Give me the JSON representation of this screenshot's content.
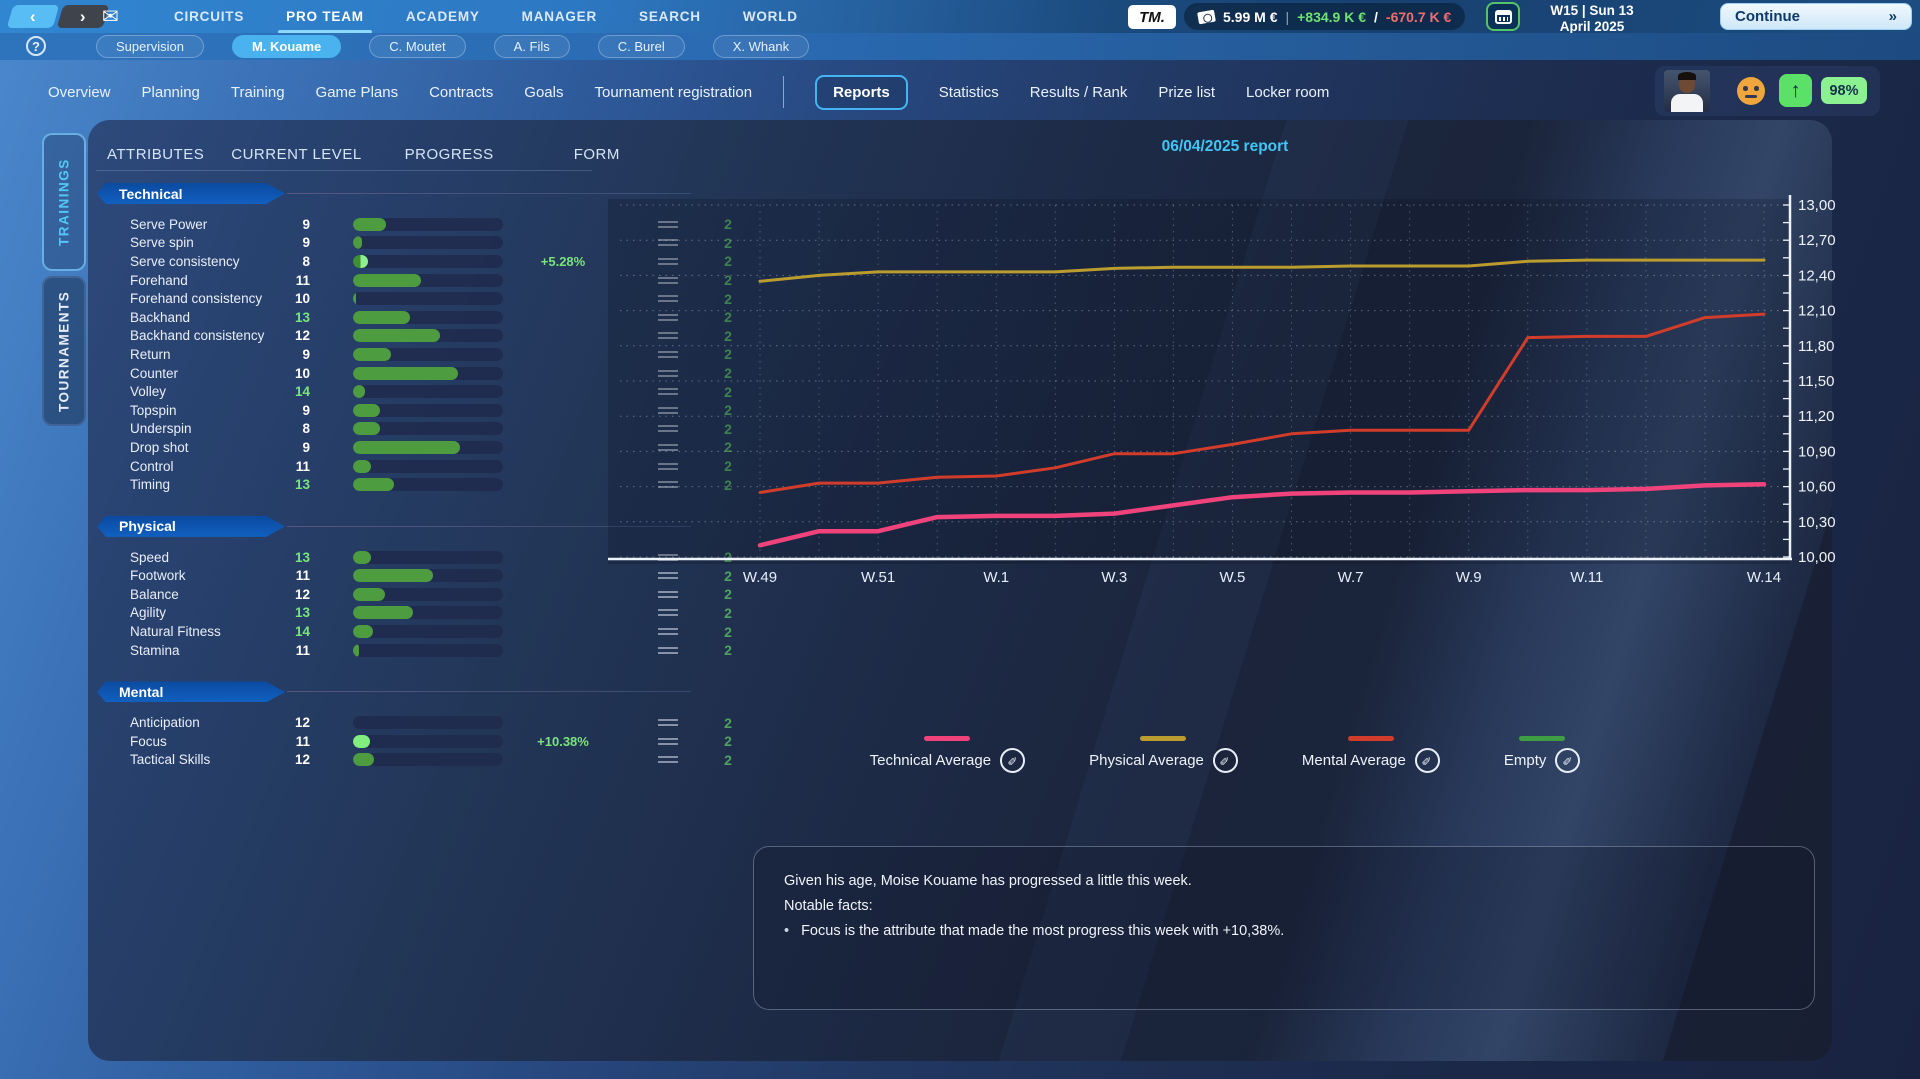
{
  "topbar": {
    "back_icon": "‹",
    "forward_icon": "›",
    "mail_icon": "✉",
    "nav": [
      {
        "label": "CIRCUITS",
        "active": false
      },
      {
        "label": "PRO TEAM",
        "active": true
      },
      {
        "label": "ACADEMY",
        "active": false
      },
      {
        "label": "MANAGER",
        "active": false
      },
      {
        "label": "SEARCH",
        "active": false
      },
      {
        "label": "WORLD",
        "active": false
      }
    ],
    "logo": "TM.",
    "money": {
      "balance": "5.99 M €",
      "separator": "|",
      "income": "+834.9 K €",
      "slash": "/",
      "expense": "-670.7 K €"
    },
    "date": {
      "line1": "W15 | Sun 13",
      "line2": "April 2025"
    },
    "continue_label": "Continue",
    "continue_icon": "»"
  },
  "help_icon": "?",
  "player_tabs": [
    {
      "label": "Supervision",
      "active": false
    },
    {
      "label": "M. Kouame",
      "active": true
    },
    {
      "label": "C. Moutet",
      "active": false
    },
    {
      "label": "A. Fils",
      "active": false
    },
    {
      "label": "C. Burel",
      "active": false
    },
    {
      "label": "X. Whank",
      "active": false
    }
  ],
  "page_tabs": [
    {
      "label": "Overview",
      "active": false
    },
    {
      "label": "Planning",
      "active": false
    },
    {
      "label": "Training",
      "active": false
    },
    {
      "label": "Game Plans",
      "active": false
    },
    {
      "label": "Contracts",
      "active": false
    },
    {
      "label": "Goals",
      "active": false
    },
    {
      "label": "Tournament registration",
      "active": false,
      "divider_after": true
    },
    {
      "label": "Reports",
      "active": true
    },
    {
      "label": "Statistics",
      "active": false
    },
    {
      "label": "Results / Rank",
      "active": false
    },
    {
      "label": "Prize list",
      "active": false
    },
    {
      "label": "Locker room",
      "active": false
    }
  ],
  "status": {
    "arrow_icon": "↑",
    "fitness": "98%"
  },
  "side_tabs": [
    {
      "label": "TRAININGS",
      "active": true
    },
    {
      "label": "TOURNAMENTS",
      "active": false
    }
  ],
  "subtabs": [
    {
      "label": "ATTRIBUTES"
    },
    {
      "label": "CURRENT LEVEL"
    },
    {
      "label": "PROGRESS"
    },
    {
      "label": "FORM"
    }
  ],
  "report_title": "06/04/2025 report",
  "attributes": {
    "sections": [
      {
        "title": "Technical",
        "rows": [
          {
            "label": "Serve Power",
            "value": "9",
            "hl": false,
            "bar": 0.22,
            "style": "normal",
            "trend": "",
            "count": "2"
          },
          {
            "label": "Serve spin",
            "value": "9",
            "hl": false,
            "bar": 0.06,
            "style": "normal",
            "trend": "",
            "count": "2"
          },
          {
            "label": "Serve consistency",
            "value": "8",
            "hl": false,
            "bar": 0.1,
            "style": "half",
            "trend": "+5.28%",
            "count": "2"
          },
          {
            "label": "Forehand",
            "value": "11",
            "hl": false,
            "bar": 0.45,
            "style": "normal",
            "trend": "",
            "count": "2"
          },
          {
            "label": "Forehand consistency",
            "value": "10",
            "hl": false,
            "bar": 0.02,
            "style": "normal",
            "trend": "",
            "count": "2"
          },
          {
            "label": "Backhand",
            "value": "13",
            "hl": true,
            "bar": 0.38,
            "style": "normal",
            "trend": "",
            "count": "2"
          },
          {
            "label": "Backhand consistency",
            "value": "12",
            "hl": false,
            "bar": 0.58,
            "style": "normal",
            "trend": "",
            "count": "2"
          },
          {
            "label": "Return",
            "value": "9",
            "hl": false,
            "bar": 0.25,
            "style": "normal",
            "trend": "",
            "count": "2"
          },
          {
            "label": "Counter",
            "value": "10",
            "hl": false,
            "bar": 0.7,
            "style": "normal",
            "trend": "",
            "count": "2"
          },
          {
            "label": "Volley",
            "value": "14",
            "hl": true,
            "bar": 0.08,
            "style": "normal",
            "trend": "",
            "count": "2"
          },
          {
            "label": "Topspin",
            "value": "9",
            "hl": false,
            "bar": 0.18,
            "style": "normal",
            "trend": "",
            "count": "2"
          },
          {
            "label": "Underspin",
            "value": "8",
            "hl": false,
            "bar": 0.18,
            "style": "normal",
            "trend": "",
            "count": "2"
          },
          {
            "label": "Drop shot",
            "value": "9",
            "hl": false,
            "bar": 0.71,
            "style": "normal",
            "trend": "",
            "count": "2"
          },
          {
            "label": "Control",
            "value": "11",
            "hl": false,
            "bar": 0.12,
            "style": "normal",
            "trend": "",
            "count": "2"
          },
          {
            "label": "Timing",
            "value": "13",
            "hl": true,
            "bar": 0.27,
            "style": "normal",
            "trend": "",
            "count": "2"
          }
        ]
      },
      {
        "title": "Physical",
        "rows": [
          {
            "label": "Speed",
            "value": "13",
            "hl": true,
            "bar": 0.12,
            "style": "normal",
            "trend": "",
            "count": "2"
          },
          {
            "label": "Footwork",
            "value": "11",
            "hl": false,
            "bar": 0.53,
            "style": "normal",
            "trend": "",
            "count": "2"
          },
          {
            "label": "Balance",
            "value": "12",
            "hl": false,
            "bar": 0.21,
            "style": "normal",
            "trend": "",
            "count": "2"
          },
          {
            "label": "Agility",
            "value": "13",
            "hl": true,
            "bar": 0.4,
            "style": "normal",
            "trend": "",
            "count": "2"
          },
          {
            "label": "Natural Fitness",
            "value": "14",
            "hl": true,
            "bar": 0.13,
            "style": "normal",
            "trend": "",
            "count": "2"
          },
          {
            "label": "Stamina",
            "value": "11",
            "hl": false,
            "bar": 0.04,
            "style": "normal",
            "trend": "",
            "count": "2"
          }
        ]
      },
      {
        "title": "Mental",
        "rows": [
          {
            "label": "Anticipation",
            "value": "12",
            "hl": false,
            "bar": 0.0,
            "style": "normal",
            "trend": "",
            "count": "2"
          },
          {
            "label": "Focus",
            "value": "11",
            "hl": false,
            "bar": 0.11,
            "style": "bright",
            "trend": "+10.38%",
            "count": "2"
          },
          {
            "label": "Tactical Skills",
            "value": "12",
            "hl": false,
            "bar": 0.14,
            "style": "normal",
            "trend": "",
            "count": "2"
          }
        ]
      }
    ]
  },
  "chart_data": {
    "type": "line",
    "title": "06/04/2025 report",
    "x": [
      "W.49",
      "W.50",
      "W.51",
      "W.52",
      "W.1",
      "W.2",
      "W.3",
      "W.4",
      "W.5",
      "W.6",
      "W.7",
      "W.8",
      "W.9",
      "W.10",
      "W.11",
      "W.12",
      "W.13",
      "W.14"
    ],
    "x_tick_indices": [
      0,
      2,
      4,
      6,
      8,
      10,
      12,
      14,
      17
    ],
    "ylim": [
      10.0,
      13.0
    ],
    "ytick_step": 0.3,
    "grid": true,
    "legend_position": "bottom",
    "series": [
      {
        "name": "Technical Average",
        "color": "#f0437c",
        "width": 4.5,
        "values": [
          10.1,
          10.22,
          10.22,
          10.34,
          10.35,
          10.35,
          10.37,
          10.44,
          10.51,
          10.54,
          10.55,
          10.55,
          10.56,
          10.57,
          10.57,
          10.58,
          10.61,
          10.62
        ]
      },
      {
        "name": "Physical Average",
        "color": "#bb9c2f",
        "width": 3,
        "values": [
          12.35,
          12.4,
          12.43,
          12.43,
          12.43,
          12.43,
          12.46,
          12.47,
          12.47,
          12.47,
          12.48,
          12.48,
          12.48,
          12.52,
          12.53,
          12.53,
          12.53,
          12.53
        ]
      },
      {
        "name": "Mental Average",
        "color": "#d23c2a",
        "width": 3,
        "values": [
          10.55,
          10.63,
          10.63,
          10.68,
          10.69,
          10.76,
          10.88,
          10.88,
          10.96,
          11.05,
          11.08,
          11.08,
          11.08,
          11.87,
          11.88,
          11.88,
          12.04,
          12.07
        ]
      },
      {
        "name": "Empty",
        "color": "#3f9e44",
        "width": 3,
        "values": []
      }
    ]
  },
  "legend": [
    {
      "label": "Technical Average",
      "color": "#f0437c"
    },
    {
      "label": "Physical Average",
      "color": "#bb9c2f"
    },
    {
      "label": "Mental Average",
      "color": "#d23c2a"
    },
    {
      "label": "Empty",
      "color": "#3f9e44"
    }
  ],
  "notes": {
    "line1": "Given his age, Moise Kouame has progressed a little this week.",
    "line2": "Notable facts:",
    "bullets": [
      "Focus is the attribute that made the most progress this week with +10,38%."
    ]
  }
}
